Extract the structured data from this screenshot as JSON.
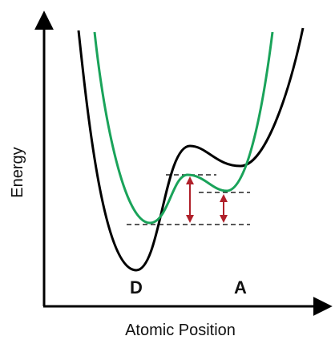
{
  "axes": {
    "y_label": "Energy",
    "x_label": "Atomic Position"
  },
  "wells": {
    "left": "D",
    "right": "A"
  }
}
